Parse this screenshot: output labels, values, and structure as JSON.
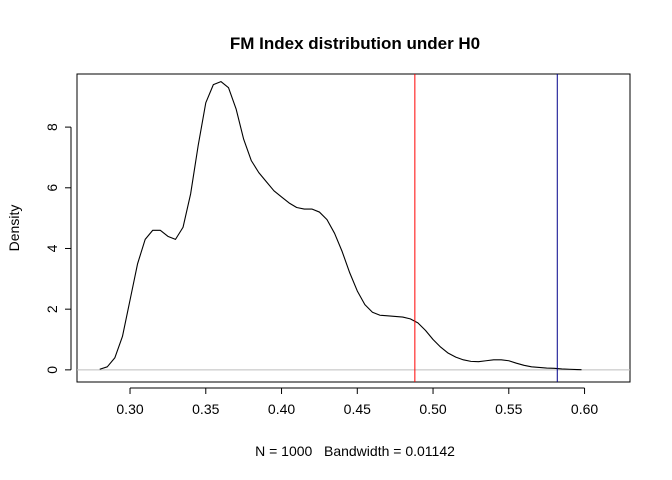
{
  "chart_data": {
    "type": "line",
    "title": "FM Index distribution under H0",
    "xlabel": "N = 1000   Bandwidth = 0.01142",
    "ylabel": "Density",
    "xlim": [
      0.265,
      0.63
    ],
    "ylim": [
      -0.4,
      9.75
    ],
    "xticks": [
      0.3,
      0.35,
      0.4,
      0.45,
      0.5,
      0.55,
      0.6
    ],
    "xtick_labels": [
      "0.30",
      "0.35",
      "0.40",
      "0.45",
      "0.50",
      "0.55",
      "0.60"
    ],
    "yticks": [
      0,
      2,
      4,
      6,
      8
    ],
    "ytick_labels": [
      "0",
      "2",
      "4",
      "6",
      "8"
    ],
    "grid": false,
    "legend": "none",
    "baseline": {
      "y": 0,
      "color": "#bebebe"
    },
    "series": [
      {
        "color": "#000000",
        "x": [
          0.28,
          0.285,
          0.29,
          0.295,
          0.3,
          0.305,
          0.31,
          0.315,
          0.32,
          0.325,
          0.33,
          0.335,
          0.34,
          0.345,
          0.35,
          0.355,
          0.36,
          0.365,
          0.37,
          0.375,
          0.38,
          0.385,
          0.39,
          0.395,
          0.4,
          0.405,
          0.41,
          0.415,
          0.42,
          0.425,
          0.43,
          0.435,
          0.44,
          0.445,
          0.45,
          0.455,
          0.46,
          0.465,
          0.47,
          0.475,
          0.48,
          0.485,
          0.49,
          0.495,
          0.5,
          0.505,
          0.51,
          0.515,
          0.52,
          0.525,
          0.53,
          0.535,
          0.54,
          0.545,
          0.55,
          0.555,
          0.56,
          0.565,
          0.57,
          0.575,
          0.58,
          0.585,
          0.59,
          0.595,
          0.598
        ],
        "y": [
          0.02,
          0.1,
          0.4,
          1.1,
          2.3,
          3.5,
          4.3,
          4.6,
          4.6,
          4.4,
          4.3,
          4.7,
          5.8,
          7.4,
          8.8,
          9.4,
          9.5,
          9.3,
          8.6,
          7.6,
          6.9,
          6.5,
          6.2,
          5.9,
          5.7,
          5.5,
          5.35,
          5.3,
          5.3,
          5.2,
          4.95,
          4.5,
          3.9,
          3.2,
          2.6,
          2.15,
          1.9,
          1.8,
          1.78,
          1.76,
          1.74,
          1.68,
          1.55,
          1.3,
          1.0,
          0.75,
          0.55,
          0.42,
          0.33,
          0.28,
          0.27,
          0.3,
          0.33,
          0.33,
          0.3,
          0.22,
          0.15,
          0.1,
          0.08,
          0.06,
          0.05,
          0.03,
          0.02,
          0.01,
          0.005
        ]
      }
    ],
    "vlines": [
      {
        "x": 0.488,
        "color": "#ff0000"
      },
      {
        "x": 0.582,
        "color": "#00008b"
      }
    ]
  }
}
